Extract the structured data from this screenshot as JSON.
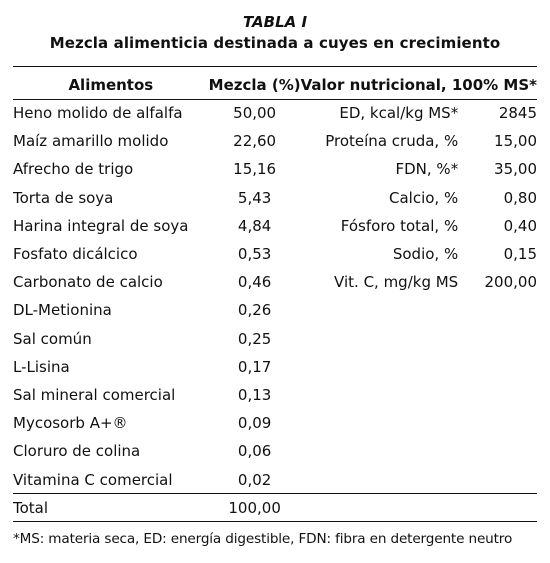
{
  "table": {
    "label": "TABLA I",
    "title": "Mezcla alimenticia destinada a cuyes en crecimiento",
    "headers": {
      "food": "Alimentos",
      "mix": "Mezcla (%)",
      "nutrition": "Valor nutricional, 100% MS*"
    },
    "rows": [
      {
        "food": "Heno molido de alfalfa",
        "pct": "50,00",
        "nutrient": "ED, kcal/kg MS*",
        "value": "2845"
      },
      {
        "food": "Maíz amarillo molido",
        "pct": "22,60",
        "nutrient": "Proteína cruda, %",
        "value": "15,00"
      },
      {
        "food": "Afrecho de trigo",
        "pct": "15,16",
        "nutrient": "FDN, %*",
        "value": "35,00"
      },
      {
        "food": "Torta de soya",
        "pct": "5,43",
        "nutrient": "Calcio, %",
        "value": "0,80"
      },
      {
        "food": "Harina integral de soya",
        "pct": "4,84",
        "nutrient": "Fósforo total, %",
        "value": "0,40"
      },
      {
        "food": "Fosfato dicálcico",
        "pct": "0,53",
        "nutrient": "Sodio, %",
        "value": "0,15"
      },
      {
        "food": "Carbonato de calcio",
        "pct": "0,46",
        "nutrient": "Vit. C, mg/kg MS",
        "value": "200,00"
      },
      {
        "food": "DL-Metionina",
        "pct": "0,26",
        "nutrient": "",
        "value": ""
      },
      {
        "food": "Sal común",
        "pct": "0,25",
        "nutrient": "",
        "value": ""
      },
      {
        "food": "L-Lisina",
        "pct": "0,17",
        "nutrient": "",
        "value": ""
      },
      {
        "food": "Sal mineral comercial",
        "pct": "0,13",
        "nutrient": "",
        "value": ""
      },
      {
        "food": "Mycosorb A+®",
        "pct": "0,09",
        "nutrient": "",
        "value": ""
      },
      {
        "food": "Cloruro de colina",
        "pct": "0,06",
        "nutrient": "",
        "value": ""
      },
      {
        "food": "Vitamina C comercial",
        "pct": "0,02",
        "nutrient": "",
        "value": ""
      }
    ],
    "total": {
      "label": "Total",
      "pct": "100,00"
    },
    "footnote": "*MS: materia seca, ED: energía digestible, FDN: fibra en detergente neutro"
  }
}
